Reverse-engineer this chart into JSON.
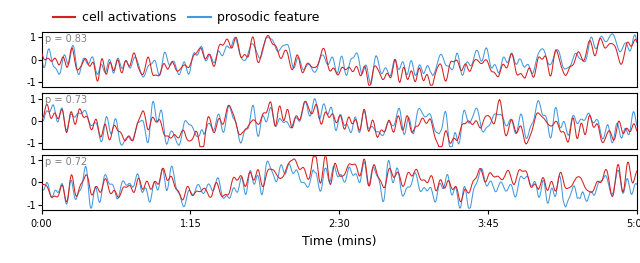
{
  "title": "",
  "xlabel": "Time (mins)",
  "ylabel": "",
  "rho_values": [
    "p = 0.83",
    "p = 0.73",
    "p = 0.72"
  ],
  "x_ticks": [
    0,
    75,
    150,
    225,
    300
  ],
  "x_tick_labels": [
    "0:00",
    "1:15",
    "2:30",
    "3:45",
    "5:00"
  ],
  "y_ticks": [
    -1,
    0,
    1
  ],
  "ylim": [
    -1.25,
    1.25
  ],
  "cell_color": "#d62020",
  "prosodic_color": "#4499dd",
  "legend_cell": "cell activations",
  "legend_prosodic": "prosodic feature",
  "n_points": 1200,
  "background_color": "#ffffff",
  "line_width": 0.75,
  "legend_fontsize": 9,
  "tick_fontsize": 7,
  "annotation_fontsize": 7,
  "xlabel_fontsize": 9
}
